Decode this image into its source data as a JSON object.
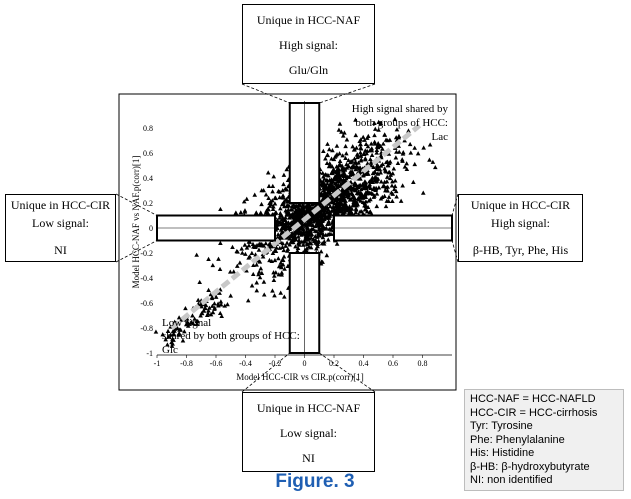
{
  "chart_data": {
    "type": "scatter",
    "xlabel": "Model HCC-CIR vs CIR.p(corr)[1]",
    "ylabel": "Model HCC-NAF vs NAF.p(corr)[1]",
    "xlim": [
      -1,
      1
    ],
    "ylim": [
      -1,
      1
    ],
    "x_ticks": [
      "-1",
      "-0.8",
      "-0.6",
      "-0.4",
      "-0.2",
      "0",
      "0.2",
      "0.4",
      "0.6",
      "0.8"
    ],
    "x_tick_values": [
      -1,
      -0.8,
      -0.6,
      -0.4,
      -0.2,
      0,
      0.2,
      0.4,
      0.6,
      0.8
    ],
    "y_ticks": [
      "0.8",
      "0.6",
      "0.4",
      "0.2",
      "0",
      "-0.2",
      "-0.4",
      "-0.6",
      "-0.8",
      "-1"
    ],
    "y_tick_values": [
      0.8,
      0.6,
      0.4,
      0.2,
      0,
      -0.2,
      -0.4,
      -0.6,
      -0.8,
      -1
    ],
    "marker": "triangle",
    "marker_color": "#000000",
    "diagonal_color": "#c8c8c8",
    "regions": [
      {
        "name": "top",
        "x": [
          -0.1,
          0.1
        ],
        "y": [
          0.2,
          1.0
        ]
      },
      {
        "name": "bottom",
        "x": [
          -0.1,
          0.1
        ],
        "y": [
          -1.0,
          -0.2
        ]
      },
      {
        "name": "left",
        "x": [
          -1.0,
          -0.2
        ],
        "y": [
          -0.1,
          0.1
        ]
      },
      {
        "name": "right",
        "x": [
          0.2,
          1.0
        ],
        "y": [
          -0.1,
          0.1
        ]
      }
    ],
    "annotations": {
      "high_shared": [
        "High signal shared by",
        "both groups of HCC:",
        "Lac"
      ],
      "low_shared": [
        "Low signal",
        "shared by both groups of HCC:",
        "Glc"
      ]
    }
  },
  "callouts": {
    "top": [
      "Unique in HCC-NAF",
      "High signal:",
      "Glu/Gln"
    ],
    "bottom": [
      "Unique in HCC-NAF",
      "Low signal:",
      "NI"
    ],
    "left": [
      "Unique in HCC-CIR",
      "Low signal:",
      "NI"
    ],
    "right": [
      "Unique in HCC-CIR",
      "High signal:",
      "β-HB, Tyr, Phe, His"
    ]
  },
  "legend": [
    "HCC-NAF = HCC-NAFLD",
    "HCC-CIR = HCC-cirrhosis",
    "Tyr: Tyrosine",
    "Phe: Phenylalanine",
    "His: Histidine",
    "β-HB: β-hydroxybutyrate",
    "NI: non identified"
  ],
  "figure_caption": "Figure. 3"
}
